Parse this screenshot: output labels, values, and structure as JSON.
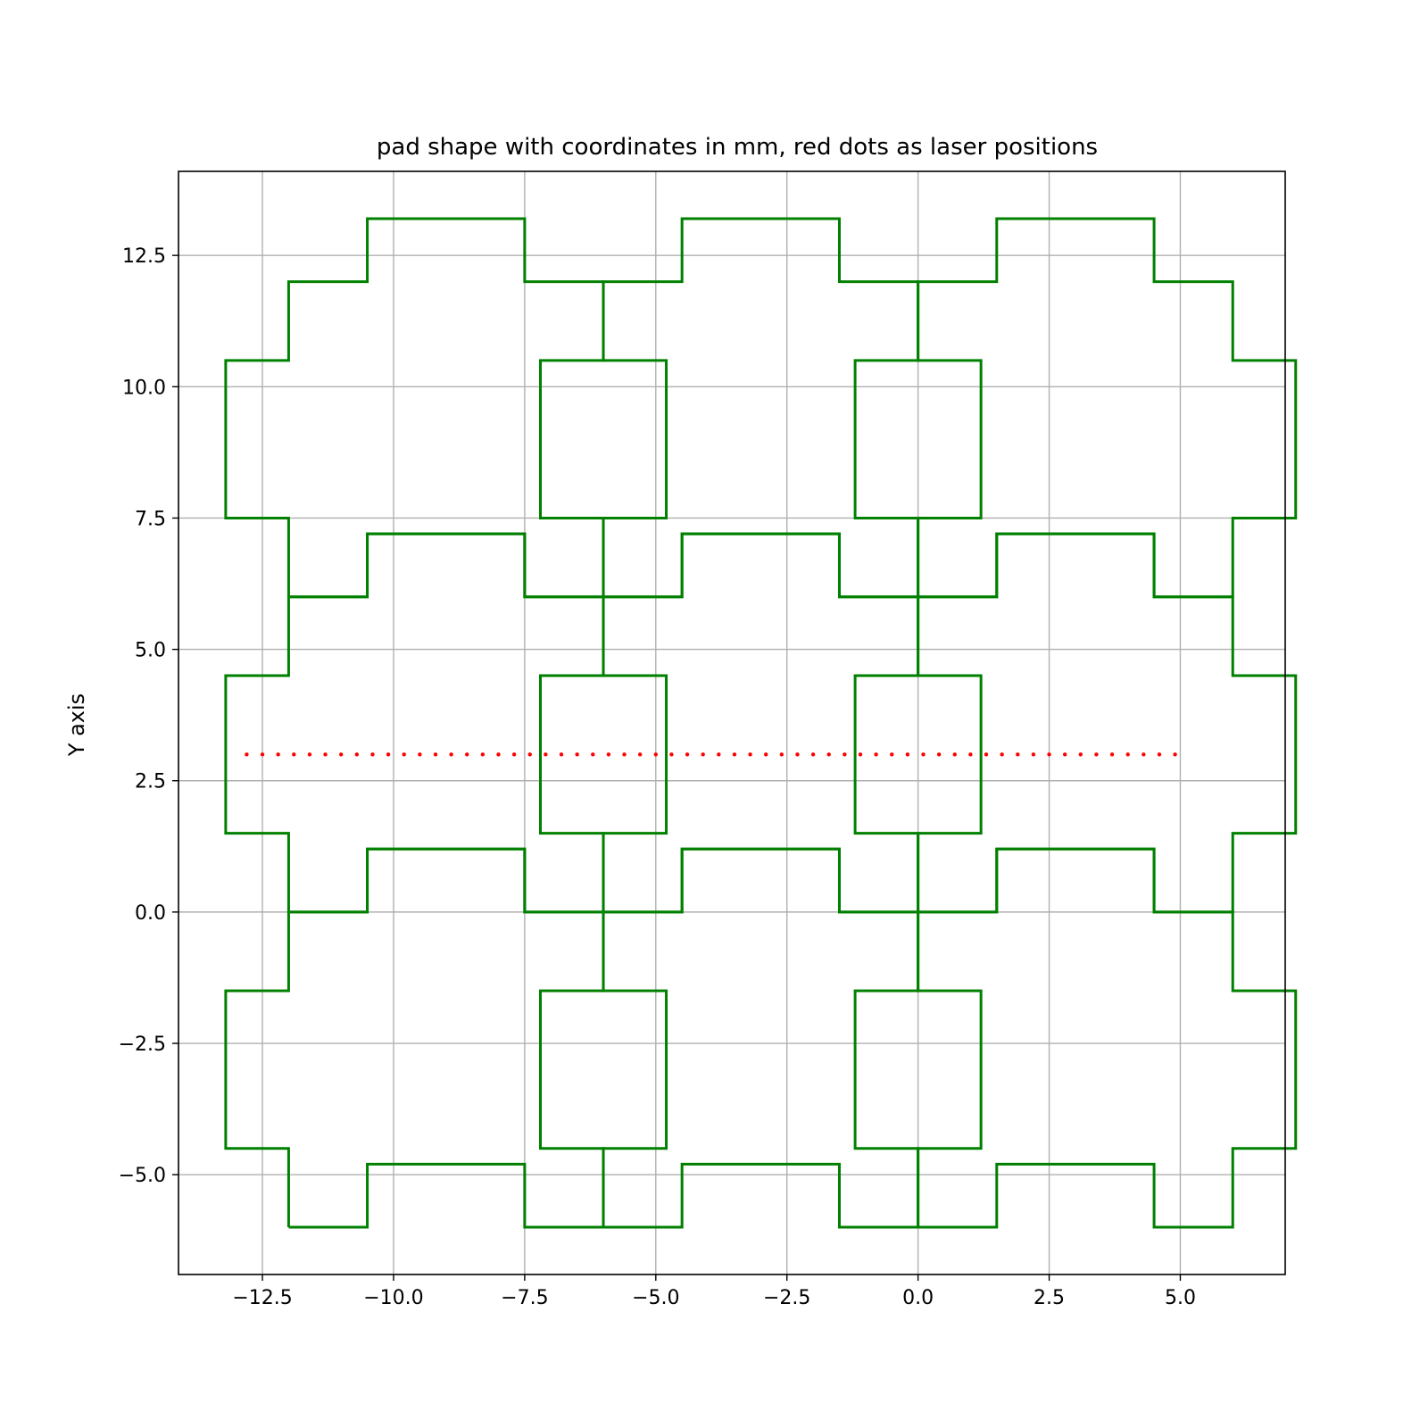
{
  "chart_data": {
    "type": "line",
    "title": "pad shape with coordinates in mm, red dots as laser positions",
    "xlabel": "",
    "ylabel": "Y axis",
    "xlim": [
      -14.1,
      7.0
    ],
    "ylim": [
      -6.9,
      14.1
    ],
    "xticks": [
      -12.5,
      -10.0,
      -7.5,
      -5.0,
      -2.5,
      0.0,
      2.5,
      5.0
    ],
    "xtick_labels": [
      "−12.5",
      "−10.0",
      "−7.5",
      "−5.0",
      "−2.5",
      "0.0",
      "2.5",
      "5.0"
    ],
    "yticks": [
      -5.0,
      -2.5,
      0.0,
      2.5,
      5.0,
      7.5,
      10.0,
      12.5
    ],
    "ytick_labels": [
      "−5.0",
      "−2.5",
      "0.0",
      "2.5",
      "5.0",
      "7.5",
      "10.0",
      "12.5"
    ],
    "grid": true,
    "colors": {
      "pad": "#008000",
      "laser": "#ff0000",
      "grid": "#b0b0b0"
    },
    "pad_template": {
      "description_units": "mm offsets relative to pad lower-left corner",
      "points": [
        [
          0,
          0
        ],
        [
          1.5,
          0
        ],
        [
          1.5,
          1.2
        ],
        [
          4.5,
          1.2
        ],
        [
          4.5,
          0
        ],
        [
          6,
          0
        ],
        [
          6,
          1.5
        ],
        [
          7.2,
          1.5
        ],
        [
          7.2,
          4.5
        ],
        [
          6,
          4.5
        ],
        [
          6,
          6
        ],
        [
          4.5,
          6
        ],
        [
          4.5,
          7.2
        ],
        [
          1.5,
          7.2
        ],
        [
          1.5,
          6
        ],
        [
          0,
          6
        ],
        [
          0,
          4.5
        ],
        [
          -1.2,
          4.5
        ],
        [
          -1.2,
          1.5
        ],
        [
          0,
          1.5
        ],
        [
          0,
          0
        ]
      ]
    },
    "pad_origins": [
      [
        -12,
        -6
      ],
      [
        -6,
        -6
      ],
      [
        0,
        -6
      ],
      [
        -12,
        0
      ],
      [
        -6,
        0
      ],
      [
        0,
        0
      ],
      [
        -12,
        6
      ],
      [
        -6,
        6
      ],
      [
        0,
        6
      ]
    ],
    "laser_positions": {
      "y": 3.0,
      "x_start": -12.8,
      "x_end": 4.9,
      "count": 60
    }
  }
}
